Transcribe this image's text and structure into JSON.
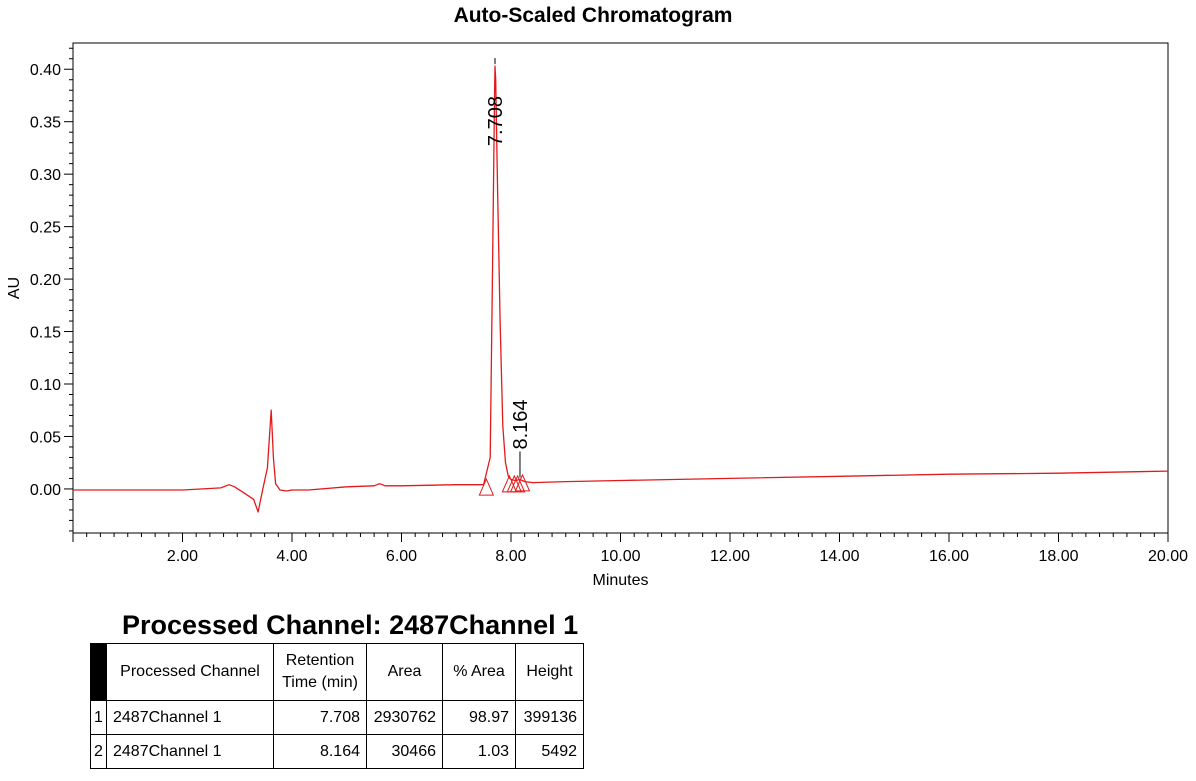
{
  "chart_data": {
    "type": "line",
    "title": "Auto-Scaled Chromatogram",
    "xlabel": "Minutes",
    "ylabel": "AU",
    "xlim": [
      0.0,
      20.0
    ],
    "ylim": [
      -0.042,
      0.425
    ],
    "x_ticks": [
      "2.00",
      "4.00",
      "6.00",
      "8.00",
      "10.00",
      "12.00",
      "14.00",
      "16.00",
      "18.00",
      "20.00"
    ],
    "y_ticks": [
      "0.00",
      "0.05",
      "0.10",
      "0.15",
      "0.20",
      "0.25",
      "0.30",
      "0.35",
      "0.40"
    ],
    "series": [
      {
        "color": "#e31a1c",
        "x": [
          0.0,
          1.0,
          2.0,
          2.7,
          2.85,
          2.95,
          3.1,
          3.3,
          3.38,
          3.46,
          3.55,
          3.62,
          3.66,
          3.7,
          3.78,
          3.9,
          4.0,
          4.3,
          5.0,
          5.5,
          5.6,
          5.7,
          6.0,
          7.0,
          7.5,
          7.62,
          7.66,
          7.7,
          7.708,
          7.72,
          7.75,
          7.8,
          7.85,
          7.9,
          7.95,
          8.0,
          8.08,
          8.164,
          8.25,
          8.4,
          9.0,
          10.0,
          12.0,
          14.0,
          16.0,
          18.0,
          20.0
        ],
        "y": [
          -0.001,
          -0.001,
          -0.001,
          0.001,
          0.004,
          0.002,
          -0.003,
          -0.01,
          -0.022,
          -0.002,
          0.02,
          0.075,
          0.03,
          0.005,
          -0.001,
          -0.002,
          -0.001,
          -0.001,
          0.002,
          0.003,
          0.005,
          0.003,
          0.003,
          0.004,
          0.004,
          0.03,
          0.2,
          0.38,
          0.403,
          0.39,
          0.3,
          0.16,
          0.06,
          0.025,
          0.012,
          0.009,
          0.008,
          0.009,
          0.007,
          0.006,
          0.007,
          0.008,
          0.01,
          0.012,
          0.014,
          0.015,
          0.017
        ]
      }
    ],
    "peaks": [
      {
        "rt": 7.708,
        "label": "7.708",
        "apex": 0.403
      },
      {
        "rt": 8.164,
        "label": "8.164",
        "apex": 0.009
      }
    ],
    "markers": [
      {
        "x": 7.55,
        "y": -0.003
      },
      {
        "x": 7.97,
        "y": 0.0
      },
      {
        "x": 8.06,
        "y": 0.0
      },
      {
        "x": 8.12,
        "y": 0.0
      },
      {
        "x": 8.21,
        "y": 0.001
      }
    ]
  },
  "table": {
    "title": "Processed Channel: 2487Channel 1",
    "headers": [
      "Processed Channel",
      "Retention Time (min)",
      "Area",
      "% Area",
      "Height"
    ],
    "header_retention_line1": "Retention",
    "header_retention_line2": "Time (min)",
    "rows": [
      {
        "num": "1",
        "channel": "2487Channel 1",
        "rt": "7.708",
        "area": "2930762",
        "pct_area": "98.97",
        "height": "399136"
      },
      {
        "num": "2",
        "channel": "2487Channel 1",
        "rt": "8.164",
        "area": "30466",
        "pct_area": "1.03",
        "height": "5492"
      }
    ]
  }
}
